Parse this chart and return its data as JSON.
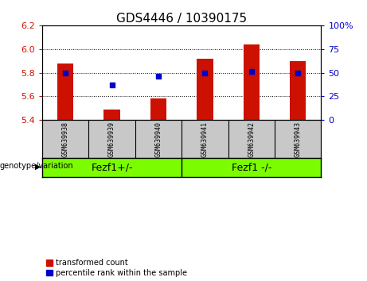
{
  "title": "GDS4446 / 10390175",
  "samples": [
    "GSM639938",
    "GSM639939",
    "GSM639940",
    "GSM639941",
    "GSM639942",
    "GSM639943"
  ],
  "transformed_counts": [
    5.88,
    5.49,
    5.58,
    5.92,
    6.04,
    5.9
  ],
  "percentile_ranks": [
    50,
    37,
    46,
    50,
    51,
    50
  ],
  "ylim_left": [
    5.4,
    6.2
  ],
  "ylim_right": [
    0,
    100
  ],
  "yticks_left": [
    5.4,
    5.6,
    5.8,
    6.0,
    6.2
  ],
  "yticks_right": [
    0,
    25,
    50,
    75,
    100
  ],
  "bar_color": "#cc1100",
  "dot_color": "#0000cc",
  "bar_bottom": 5.4,
  "grid_lines": [
    5.6,
    5.8,
    6.0
  ],
  "group1_label": "Fezf1+/-",
  "group2_label": "Fezf1 -/-",
  "group_header": "genotype/variation",
  "legend_items": [
    {
      "color": "#cc1100",
      "label": "transformed count"
    },
    {
      "color": "#0000cc",
      "label": "percentile rank within the sample"
    }
  ],
  "bar_width": 0.35,
  "tick_label_fontsize": 8,
  "title_fontsize": 11,
  "background_plot": "#ffffff",
  "background_label": "#c8c8c8",
  "background_group": "#7CFC00"
}
